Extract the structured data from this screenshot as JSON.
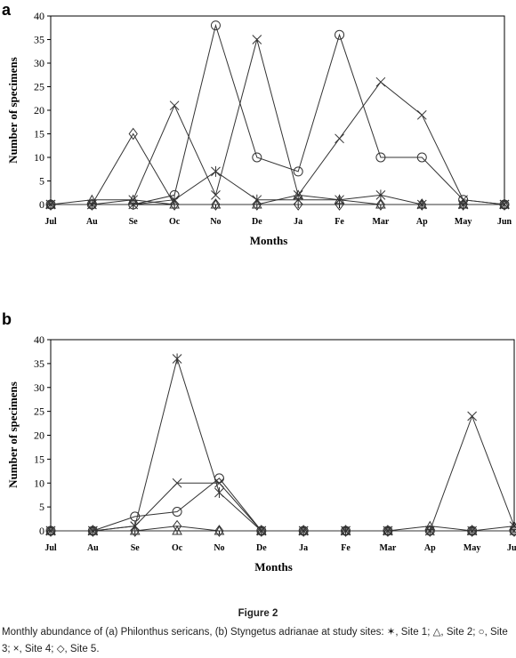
{
  "caption": {
    "figure_label": "Figure 2",
    "text": "Monthly abundance of (a) Philonthus sericans, (b) Styngetus adrianae at study sites: ✶, Site 1; △, Site 2; ○, Site 3; ×, Site 4; ◇, Site 5."
  },
  "chart_data": [
    {
      "panel": "a",
      "type": "line",
      "xlabel": "Months",
      "ylabel": "Number of specimens",
      "ylim": [
        0,
        40
      ],
      "yticks": [
        0,
        5,
        10,
        15,
        20,
        25,
        30,
        35,
        40
      ],
      "categories": [
        "Jul",
        "Au",
        "Se",
        "Oc",
        "No",
        "De",
        "Ja",
        "Fe",
        "Mar",
        "Ap",
        "May",
        "Jun"
      ],
      "grid": false,
      "series": [
        {
          "name": "Site 1",
          "marker": "asterisk",
          "values": [
            0,
            0,
            0,
            1,
            7,
            1,
            1,
            1,
            2,
            0,
            0,
            0
          ]
        },
        {
          "name": "Site 2",
          "marker": "triangle",
          "values": [
            0,
            1,
            1,
            0,
            0,
            0,
            2,
            1,
            0,
            0,
            0,
            0
          ]
        },
        {
          "name": "Site 3",
          "marker": "circle",
          "values": [
            0,
            0,
            0,
            2,
            38,
            10,
            7,
            36,
            10,
            10,
            1,
            0
          ]
        },
        {
          "name": "Site 4",
          "marker": "cross",
          "values": [
            0,
            0,
            1,
            21,
            2,
            35,
            2,
            14,
            26,
            19,
            1,
            0
          ]
        },
        {
          "name": "Site 5",
          "marker": "diamond",
          "values": [
            0,
            0,
            15,
            0,
            0,
            0,
            0,
            0,
            0,
            0,
            0,
            0
          ]
        }
      ]
    },
    {
      "panel": "b",
      "type": "line",
      "xlabel": "Months",
      "ylabel": "Number of specimens",
      "ylim": [
        0,
        40
      ],
      "yticks": [
        0,
        5,
        10,
        15,
        20,
        25,
        30,
        35,
        40
      ],
      "categories": [
        "Jul",
        "Au",
        "Se",
        "Oc",
        "No",
        "De",
        "Ja",
        "Fe",
        "Mar",
        "Ap",
        "May",
        "Jun"
      ],
      "grid": false,
      "series": [
        {
          "name": "Site 1",
          "marker": "asterisk",
          "values": [
            0,
            0,
            1,
            36,
            8,
            0,
            0,
            0,
            0,
            0,
            0,
            0
          ]
        },
        {
          "name": "Site 2",
          "marker": "triangle",
          "values": [
            0,
            0,
            0,
            0,
            0,
            0,
            0,
            0,
            0,
            1,
            0,
            1
          ]
        },
        {
          "name": "Site 3",
          "marker": "circle",
          "values": [
            0,
            0,
            3,
            4,
            11,
            0,
            0,
            0,
            0,
            0,
            0,
            0
          ]
        },
        {
          "name": "Site 4",
          "marker": "cross",
          "values": [
            0,
            0,
            1,
            10,
            10,
            0,
            0,
            0,
            0,
            0,
            24,
            1
          ]
        },
        {
          "name": "Site 5",
          "marker": "diamond",
          "values": [
            0,
            0,
            0,
            1,
            0,
            0,
            0,
            0,
            0,
            0,
            0,
            0
          ]
        }
      ]
    }
  ]
}
